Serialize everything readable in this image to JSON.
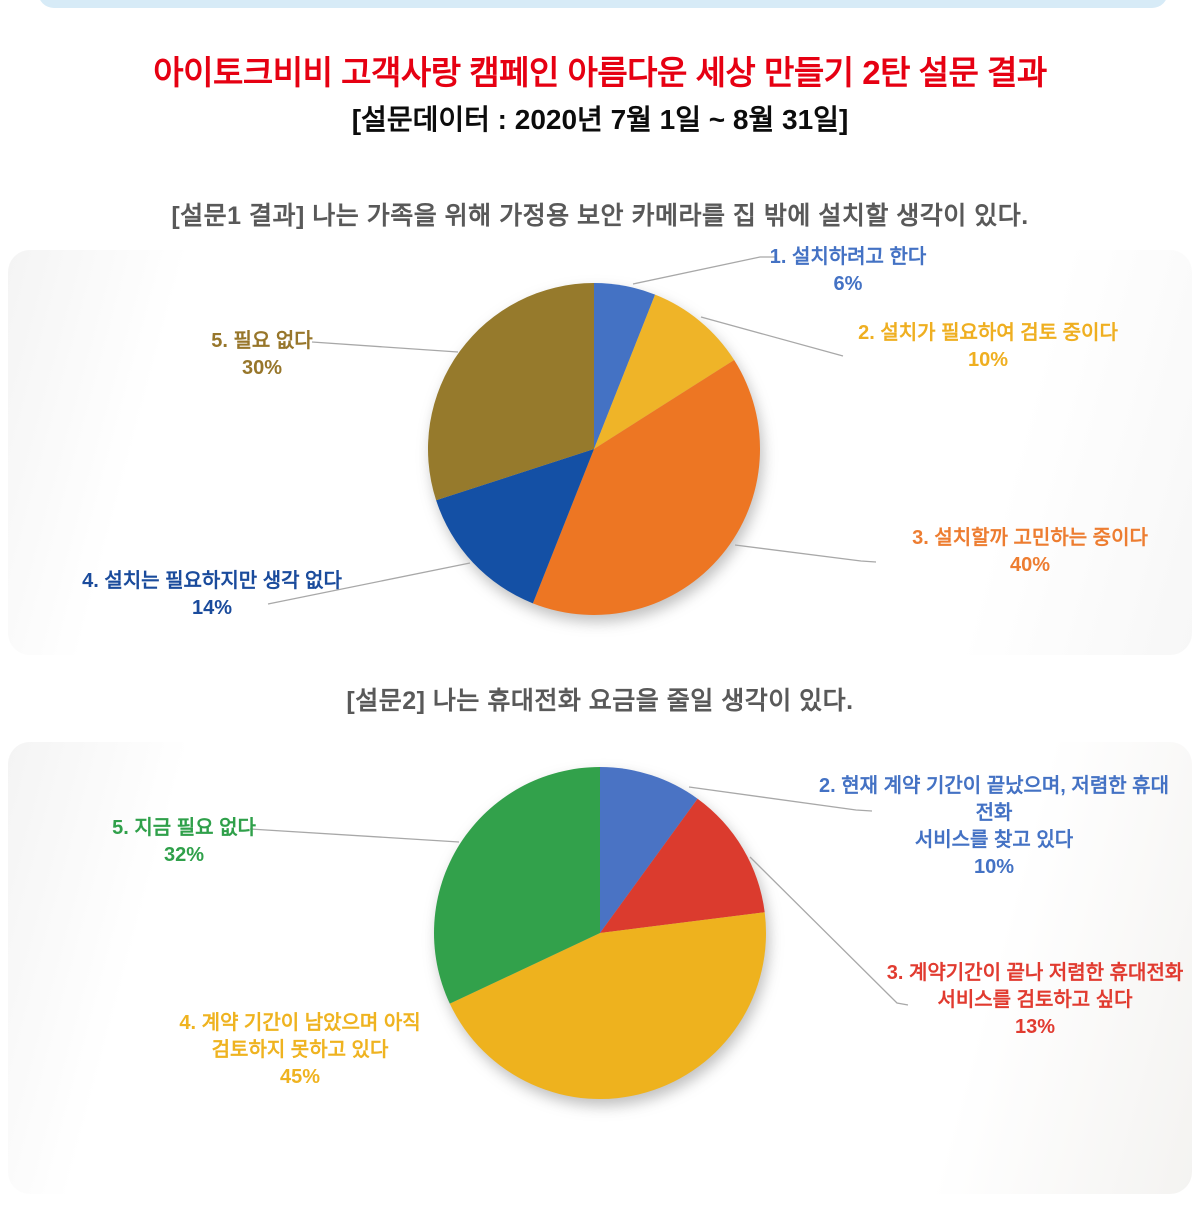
{
  "header": {
    "title": "아이토크비비 고객사랑 캠페인 아름다운 세상 만들기 2탄 설문 결과",
    "subtitle": "[설문데이터 : 2020년 7월 1일 ~ 8월 31일]"
  },
  "colors": {
    "title_red": "#e60012",
    "subtitle_black": "#0c0c0c",
    "chart_title_gray": "#595959",
    "leader_line_gray": "#a8a8a8",
    "top_bar_blue": "#d7ebf7"
  },
  "chart_data": [
    {
      "type": "pie",
      "title": "[설문1 결과] 나는 가족을 위해 가정용 보안 카메라를 집 밖에 설치할 생각이 있다.",
      "unit": "%",
      "direction": "clockwise",
      "start_angle_deg": 0,
      "categories": [
        "1. 설치하려고 한다",
        "2. 설치가 필요하여 검토 중이다",
        "3. 설치할까 고민하는 중이다",
        "4. 설치는 필요하지만 생각 없다",
        "5. 필요 없다"
      ],
      "values": [
        6,
        10,
        40,
        14,
        30
      ],
      "colors": [
        "#4472c4",
        "#efb428",
        "#ed7623",
        "#1450a5",
        "#967a2c"
      ],
      "slices": [
        {
          "name_lines": [
            "1. 설치하려고 한다"
          ],
          "pct": "6%",
          "text_color": "#4472c4"
        },
        {
          "name_lines": [
            "2. 설치가 필요하여 검토 중이다"
          ],
          "pct": "10%",
          "text_color": "#efaf21"
        },
        {
          "name_lines": [
            "3. 설치할까 고민하는 중이다"
          ],
          "pct": "40%",
          "text_color": "#ed7d31"
        },
        {
          "name_lines": [
            "4. 설치는 필요하지만 생각 없다"
          ],
          "pct": "14%",
          "text_color": "#1a4b9c"
        },
        {
          "name_lines": [
            "5. 필요 없다"
          ],
          "pct": "30%",
          "text_color": "#97762a"
        }
      ]
    },
    {
      "type": "pie",
      "title": "[설문2] 나는 휴대전화 요금을 줄일 생각이 있다.",
      "unit": "%",
      "direction": "clockwise",
      "start_angle_deg": 0,
      "categories": [
        "2. 현재 계약 기간이 끝났으며, 저렴한 휴대전화 서비스를 찾고 있다",
        "3. 계약기간이 끝나 저렴한 휴대전화 서비스를 검토하고 싶다",
        "4. 계약 기간이 남았으며 아직 검토하지 못하고 있다",
        "5. 지금 필요 없다"
      ],
      "values": [
        10,
        13,
        45,
        32
      ],
      "colors": [
        "#4a73c4",
        "#db3b2e",
        "#eeb21e",
        "#32a14b"
      ],
      "slices": [
        {
          "name_lines": [
            "2. 현재 계약 기간이 끝났으며, 저렴한 휴대전화",
            "서비스를 찾고 있다"
          ],
          "pct": "10%",
          "text_color": "#4472c4"
        },
        {
          "name_lines": [
            "3. 계약기간이 끝나 저렴한 휴대전화",
            "서비스를 검토하고 싶다"
          ],
          "pct": "13%",
          "text_color": "#e13b30"
        },
        {
          "name_lines": [
            "4. 계약 기간이 남았으며 아직",
            "검토하지 못하고 있다"
          ],
          "pct": "45%",
          "text_color": "#efb320"
        },
        {
          "name_lines": [
            "5. 지금 필요 없다"
          ],
          "pct": "32%",
          "text_color": "#2fa04a"
        }
      ]
    }
  ]
}
